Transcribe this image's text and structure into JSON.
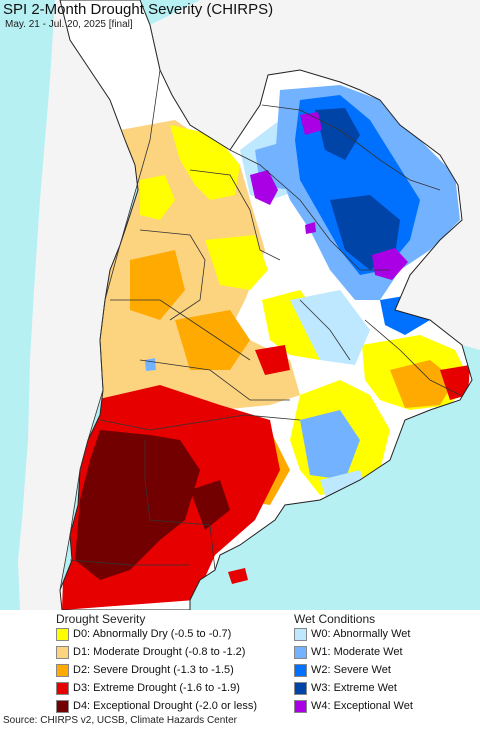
{
  "title": "SPI 2-Month Drought Severity (CHIRPS)",
  "subtitle": "May. 21 - Jul. 20, 2025 [final]",
  "map": {
    "ocean_color": "#b7f0f3",
    "land_color": "#f4f4f4",
    "neutral_color": "#ffffff",
    "border_color": "#333333"
  },
  "legend": {
    "drought": {
      "heading": "Drought Severity",
      "items": [
        {
          "label": "D0: Abnormally Dry (-0.5 to -0.7)",
          "color": "#ffff00"
        },
        {
          "label": "D1: Moderate Drought (-0.8 to -1.2)",
          "color": "#fcd37f"
        },
        {
          "label": "D2: Severe Drought (-1.3 to -1.5)",
          "color": "#ffaa00"
        },
        {
          "label": "D3: Extreme Drought (-1.6 to -1.9)",
          "color": "#e60000"
        },
        {
          "label": "D4: Exceptional Drought (-2.0 or less)",
          "color": "#730000"
        }
      ]
    },
    "wet": {
      "heading": "Wet Conditions",
      "items": [
        {
          "label": "W0: Abnormally Wet",
          "color": "#bee8ff"
        },
        {
          "label": "W1: Moderate Wet",
          "color": "#73b2ff"
        },
        {
          "label": "W2: Severe Wet",
          "color": "#0070ff"
        },
        {
          "label": "W3: Extreme Wet",
          "color": "#0044a8"
        },
        {
          "label": "W4: Exceptional Wet",
          "color": "#a900e6"
        }
      ]
    }
  },
  "source": "Source: CHIRPS v2, UCSB, Climate Hazards Center"
}
